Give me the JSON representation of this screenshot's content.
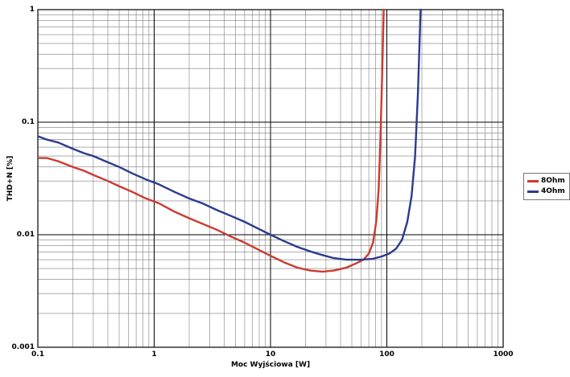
{
  "chart_data": {
    "type": "line",
    "title": "",
    "xlabel": "Moc Wyjściowa [W]",
    "ylabel": "THD+N [%]",
    "xscale": "log",
    "yscale": "log",
    "xlim": [
      0.1,
      1000
    ],
    "ylim": [
      0.001,
      1
    ],
    "grid": "log major and minor gridlines on both axes",
    "legend_position": "right-outside",
    "x_ticks": {
      "values": [
        0.1,
        1,
        10,
        100,
        1000
      ],
      "labels": [
        "0.1",
        "1",
        "10",
        "100",
        "1000"
      ]
    },
    "y_ticks": {
      "values": [
        1,
        0.1,
        0.01,
        0.001
      ],
      "labels": [
        "1",
        "0.1",
        "0.01",
        "0.001"
      ]
    },
    "series": [
      {
        "name": "8Ohm",
        "color": "#cc3a2f",
        "x": [
          0.1,
          0.12,
          0.15,
          0.2,
          0.25,
          0.3,
          0.4,
          0.5,
          0.65,
          0.85,
          1.1,
          1.5,
          2,
          2.6,
          3.5,
          4.5,
          6,
          8,
          10,
          13,
          17,
          22,
          28,
          35,
          45,
          55,
          63,
          70,
          76,
          81,
          85,
          88,
          91,
          94
        ],
        "y": [
          0.048,
          0.048,
          0.045,
          0.04,
          0.037,
          0.034,
          0.03,
          0.027,
          0.024,
          0.021,
          0.019,
          0.016,
          0.014,
          0.0125,
          0.011,
          0.0097,
          0.0085,
          0.0073,
          0.0065,
          0.0057,
          0.0051,
          0.0048,
          0.0047,
          0.0048,
          0.0051,
          0.0056,
          0.006,
          0.0068,
          0.0085,
          0.013,
          0.025,
          0.07,
          0.25,
          1.0
        ]
      },
      {
        "name": "4Ohm",
        "color": "#2a3b8f",
        "x": [
          0.1,
          0.12,
          0.15,
          0.2,
          0.25,
          0.3,
          0.4,
          0.5,
          0.65,
          0.85,
          1.1,
          1.5,
          2,
          2.6,
          3.5,
          4.5,
          6,
          8,
          10,
          13,
          17,
          22,
          28,
          35,
          45,
          60,
          75,
          90,
          105,
          120,
          135,
          150,
          163,
          175,
          185,
          195
        ],
        "y": [
          0.075,
          0.07,
          0.066,
          0.058,
          0.053,
          0.05,
          0.044,
          0.04,
          0.035,
          0.031,
          0.028,
          0.024,
          0.021,
          0.019,
          0.0165,
          0.0148,
          0.013,
          0.0112,
          0.01,
          0.0088,
          0.0078,
          0.0071,
          0.0066,
          0.0062,
          0.006,
          0.006,
          0.0061,
          0.0064,
          0.0068,
          0.0075,
          0.009,
          0.013,
          0.022,
          0.05,
          0.18,
          1.0
        ]
      }
    ]
  }
}
